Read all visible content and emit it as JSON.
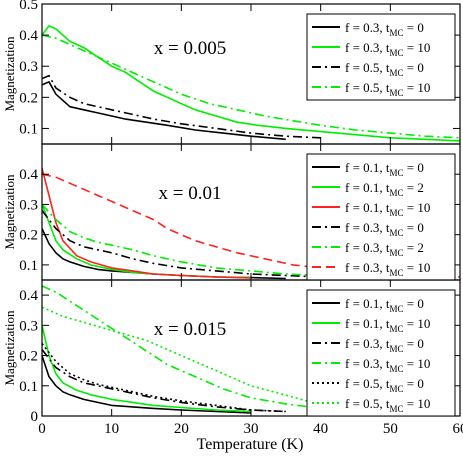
{
  "chart_data": {
    "type": "line",
    "xlabel": "Temperature (K)",
    "xlim": [
      0,
      60
    ],
    "x_ticks": [
      "0",
      "10",
      "20",
      "30",
      "40",
      "50",
      "60"
    ],
    "panels": [
      {
        "annotation": "x = 0.005",
        "ylabel": "Magnetization",
        "ylim": [
          0.05,
          0.5
        ],
        "y_ticks": [
          "0.1",
          "0.2",
          "0.3",
          "0.4",
          "0.5"
        ],
        "legend_position": "top-right",
        "series": [
          {
            "name_main": "f = 0.3, t",
            "name_sub": "MC",
            "name_tail": " = 0",
            "color": "#000000",
            "dash": "solid",
            "x": [
              0,
              1,
              2,
              4,
              6,
              8,
              10,
              12,
              15,
              18,
              22,
              26,
              30,
              35
            ],
            "y": [
              0.24,
              0.25,
              0.21,
              0.17,
              0.16,
              0.15,
              0.14,
              0.13,
              0.12,
              0.11,
              0.095,
              0.085,
              0.075,
              0.065
            ]
          },
          {
            "name_main": "f = 0.3, t",
            "name_sub": "MC",
            "name_tail": " = 10",
            "color": "#00ee00",
            "dash": "solid",
            "x": [
              0,
              1,
              2,
              4,
              6,
              8,
              10,
              12,
              14,
              16,
              18,
              20,
              22,
              25,
              28,
              31,
              35,
              40,
              45,
              50,
              55,
              60
            ],
            "y": [
              0.4,
              0.43,
              0.42,
              0.38,
              0.36,
              0.33,
              0.3,
              0.28,
              0.25,
              0.22,
              0.2,
              0.18,
              0.16,
              0.14,
              0.12,
              0.11,
              0.1,
              0.09,
              0.08,
              0.07,
              0.065,
              0.06
            ]
          },
          {
            "name_main": "f = 0.5, t",
            "name_sub": "MC",
            "name_tail": " = 0",
            "color": "#000000",
            "dash": "dashdot",
            "x": [
              0,
              1,
              2,
              4,
              6,
              8,
              10,
              13,
              16,
              20,
              25,
              30,
              35,
              40
            ],
            "y": [
              0.26,
              0.27,
              0.23,
              0.2,
              0.18,
              0.17,
              0.16,
              0.145,
              0.13,
              0.115,
              0.1,
              0.085,
              0.075,
              0.07
            ]
          },
          {
            "name_main": "f = 0.5, t",
            "name_sub": "MC",
            "name_tail": " = 10",
            "color": "#00ee00",
            "dash": "dashdot",
            "x": [
              0,
              2,
              5,
              8,
              11,
              14,
              17,
              20,
              24,
              28,
              32,
              36,
              40,
              45,
              50,
              55,
              60
            ],
            "y": [
              0.4,
              0.39,
              0.36,
              0.33,
              0.3,
              0.27,
              0.24,
              0.21,
              0.18,
              0.16,
              0.14,
              0.125,
              0.11,
              0.095,
              0.085,
              0.075,
              0.07
            ]
          }
        ]
      },
      {
        "annotation": "x = 0.01",
        "ylabel": "Magnetization",
        "ylim": [
          0.05,
          0.5
        ],
        "y_ticks": [
          "0.1",
          "0.2",
          "0.3",
          "0.4"
        ],
        "legend_position": "top-right",
        "series": [
          {
            "name_main": "f = 0.1, t",
            "name_sub": "MC",
            "name_tail": " = 0",
            "color": "#000000",
            "dash": "solid",
            "x": [
              0,
              1,
              2,
              3,
              4,
              6,
              8,
              10,
              13,
              16,
              20,
              25,
              30,
              35
            ],
            "y": [
              0.22,
              0.17,
              0.14,
              0.12,
              0.11,
              0.095,
              0.085,
              0.08,
              0.075,
              0.07,
              0.065,
              0.06,
              0.058,
              0.055
            ]
          },
          {
            "name_main": "f = 0.1, t",
            "name_sub": "MC",
            "name_tail": " = 2",
            "color": "#00ee00",
            "dash": "solid",
            "x": [
              0,
              1,
              2,
              3,
              5,
              7,
              10,
              13,
              16,
              20,
              25,
              30
            ],
            "y": [
              0.3,
              0.24,
              0.18,
              0.15,
              0.12,
              0.1,
              0.085,
              0.075,
              0.07,
              0.065,
              0.06,
              0.058
            ]
          },
          {
            "name_main": "f = 0.1, t",
            "name_sub": "MC",
            "name_tail": " = 10",
            "color": "#ff2222",
            "dash": "solid",
            "x": [
              0,
              1,
              2,
              3,
              5,
              7,
              10,
              13,
              16,
              20,
              25,
              30
            ],
            "y": [
              0.42,
              0.33,
              0.24,
              0.18,
              0.13,
              0.11,
              0.09,
              0.08,
              0.07,
              0.065,
              0.06,
              0.057
            ]
          },
          {
            "name_main": "f = 0.3, t",
            "name_sub": "MC",
            "name_tail": " = 0",
            "color": "#000000",
            "dash": "dashdot",
            "x": [
              0,
              2,
              4,
              6,
              8,
              10,
              13,
              16,
              20,
              25,
              30,
              35,
              40
            ],
            "y": [
              0.28,
              0.22,
              0.18,
              0.16,
              0.15,
              0.14,
              0.12,
              0.105,
              0.09,
              0.08,
              0.07,
              0.065,
              0.06
            ]
          },
          {
            "name_main": "f = 0.3, t",
            "name_sub": "MC",
            "name_tail": " = 2",
            "color": "#00ee00",
            "dash": "dashdot",
            "x": [
              0,
              2,
              4,
              6,
              8,
              10,
              13,
              16,
              20,
              25,
              30,
              35,
              40,
              45
            ],
            "y": [
              0.3,
              0.25,
              0.21,
              0.19,
              0.175,
              0.165,
              0.15,
              0.13,
              0.11,
              0.09,
              0.08,
              0.07,
              0.065,
              0.06
            ]
          },
          {
            "name_main": "f = 0.3, t",
            "name_sub": "MC",
            "name_tail": " = 10",
            "color": "#ff2222",
            "dash": "dashed",
            "x": [
              0,
              2,
              4,
              6,
              8,
              10,
              12,
              14,
              16,
              18,
              20,
              22,
              25,
              28,
              32,
              36,
              40,
              45,
              50,
              55,
              60
            ],
            "y": [
              0.4,
              0.39,
              0.37,
              0.35,
              0.33,
              0.31,
              0.29,
              0.27,
              0.25,
              0.22,
              0.2,
              0.18,
              0.16,
              0.14,
              0.12,
              0.1,
              0.09,
              0.08,
              0.07,
              0.065,
              0.06
            ]
          }
        ]
      },
      {
        "annotation": "x = 0.015",
        "ylabel": "Magnetization",
        "ylim": [
          0,
          0.45
        ],
        "y_ticks": [
          "0",
          "0.1",
          "0.2",
          "0.3",
          "0.4"
        ],
        "legend_position": "top-right",
        "series": [
          {
            "name_main": "f = 0.1, t",
            "name_sub": "MC",
            "name_tail": " = 0",
            "color": "#000000",
            "dash": "solid",
            "x": [
              0,
              1,
              2,
              3,
              4,
              6,
              8,
              10,
              13,
              16,
              20,
              25,
              30
            ],
            "y": [
              0.2,
              0.13,
              0.1,
              0.08,
              0.07,
              0.055,
              0.045,
              0.035,
              0.03,
              0.025,
              0.02,
              0.015,
              0.01
            ]
          },
          {
            "name_main": "f = 0.1, t",
            "name_sub": "MC",
            "name_tail": " = 10",
            "color": "#00ee00",
            "dash": "solid",
            "x": [
              0,
              1,
              2,
              3,
              5,
              7,
              10,
              13,
              16,
              20,
              25,
              30
            ],
            "y": [
              0.3,
              0.2,
              0.14,
              0.11,
              0.085,
              0.07,
              0.055,
              0.045,
              0.035,
              0.028,
              0.02,
              0.015
            ]
          },
          {
            "name_main": "f = 0.3, t",
            "name_sub": "MC",
            "name_tail": " = 0",
            "color": "#000000",
            "dash": "dashdot",
            "x": [
              0,
              2,
              4,
              6,
              8,
              10,
              13,
              16,
              20,
              25,
              30,
              35
            ],
            "y": [
              0.22,
              0.16,
              0.13,
              0.11,
              0.1,
              0.09,
              0.075,
              0.06,
              0.045,
              0.03,
              0.02,
              0.015
            ]
          },
          {
            "name_main": "f = 0.3, t",
            "name_sub": "MC",
            "name_tail": " = 10",
            "color": "#00ee00",
            "dash": "dashdot",
            "x": [
              0,
              2,
              4,
              6,
              8,
              10,
              12,
              14,
              16,
              18,
              20,
              23,
              26,
              30,
              35,
              40,
              45
            ],
            "y": [
              0.43,
              0.41,
              0.38,
              0.35,
              0.32,
              0.29,
              0.26,
              0.23,
              0.2,
              0.17,
              0.15,
              0.12,
              0.09,
              0.06,
              0.04,
              0.025,
              0.015
            ]
          },
          {
            "name_main": "f = 0.5, t",
            "name_sub": "MC",
            "name_tail": " = 0",
            "color": "#000000",
            "dash": "dotted",
            "x": [
              0,
              2,
              4,
              6,
              8,
              10,
              13,
              16,
              20,
              25,
              30,
              35
            ],
            "y": [
              0.24,
              0.18,
              0.14,
              0.12,
              0.105,
              0.095,
              0.08,
              0.065,
              0.05,
              0.035,
              0.02,
              0.015
            ]
          },
          {
            "name_main": "f = 0.5, t",
            "name_sub": "MC",
            "name_tail": " = 10",
            "color": "#00ee00",
            "dash": "dotted",
            "x": [
              0,
              3,
              6,
              9,
              12,
              15,
              18,
              21,
              24,
              27,
              30,
              34,
              38,
              42,
              46,
              50
            ],
            "y": [
              0.36,
              0.33,
              0.31,
              0.29,
              0.27,
              0.25,
              0.22,
              0.19,
              0.16,
              0.13,
              0.1,
              0.075,
              0.05,
              0.035,
              0.02,
              0.012
            ]
          }
        ]
      }
    ]
  }
}
